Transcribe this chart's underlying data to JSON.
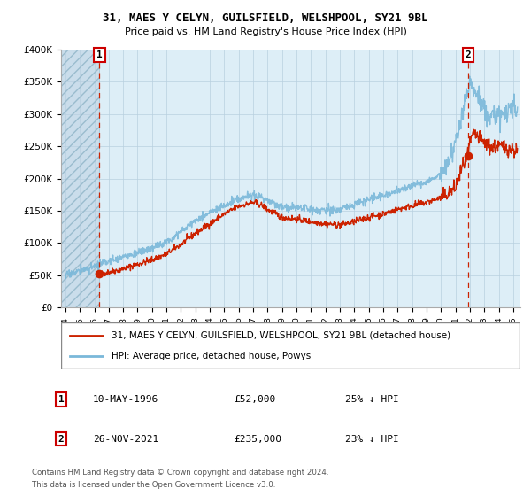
{
  "title_line1": "31, MAES Y CELYN, GUILSFIELD, WELSHPOOL, SY21 9BL",
  "title_line2": "Price paid vs. HM Land Registry's House Price Index (HPI)",
  "ylim": [
    0,
    400000
  ],
  "yticks": [
    0,
    50000,
    100000,
    150000,
    200000,
    250000,
    300000,
    350000,
    400000
  ],
  "ytick_labels": [
    "£0",
    "£50K",
    "£100K",
    "£150K",
    "£200K",
    "£250K",
    "£300K",
    "£350K",
    "£400K"
  ],
  "xlim_start": 1993.7,
  "xlim_end": 2025.5,
  "xticks": [
    1994,
    1995,
    1996,
    1997,
    1998,
    1999,
    2000,
    2001,
    2002,
    2003,
    2004,
    2005,
    2006,
    2007,
    2008,
    2009,
    2010,
    2011,
    2012,
    2013,
    2014,
    2015,
    2016,
    2017,
    2018,
    2019,
    2020,
    2021,
    2022,
    2023,
    2024,
    2025
  ],
  "hpi_color": "#7ab8d9",
  "price_color": "#cc2200",
  "marker_color": "#cc2200",
  "vline_color": "#cc2200",
  "plot_bg_color": "#ddeef7",
  "legend_label_red": "31, MAES Y CELYN, GUILSFIELD, WELSHPOOL, SY21 9BL (detached house)",
  "legend_label_blue": "HPI: Average price, detached house, Powys",
  "annotation1_label": "1",
  "annotation1_date": "10-MAY-1996",
  "annotation1_price": "£52,000",
  "annotation1_hpi": "25% ↓ HPI",
  "annotation1_year": 1996.36,
  "annotation1_value": 52000,
  "annotation2_label": "2",
  "annotation2_date": "26-NOV-2021",
  "annotation2_price": "£235,000",
  "annotation2_hpi": "23% ↓ HPI",
  "annotation2_year": 2021.9,
  "annotation2_value": 235000,
  "footer1": "Contains HM Land Registry data © Crown copyright and database right 2024.",
  "footer2": "This data is licensed under the Open Government Licence v3.0.",
  "grid_color": "#b8d0e0",
  "hatch_end_year": 1996.36,
  "hpi_seed": 17,
  "price_seed": 42
}
